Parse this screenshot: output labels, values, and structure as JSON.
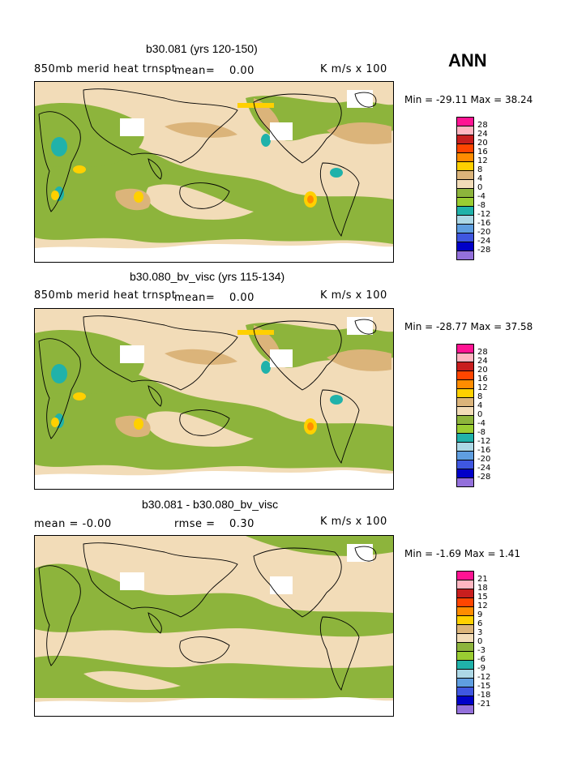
{
  "season": "ANN",
  "panels": [
    {
      "title": "b30.081 (yrs 120-150)",
      "left_label": "850mb merid heat trnspt",
      "mean_label": "mean=",
      "mean_value": "0.00",
      "units": "K m/s x 100",
      "minmax": "Min = -29.11 Max =  38.24",
      "levels": [
        "28",
        "24",
        "20",
        "16",
        "12",
        "8",
        "4",
        "0",
        "-4",
        "-8",
        "-12",
        "-16",
        "-20",
        "-24",
        "-28"
      ]
    },
    {
      "title": "b30.080_bv_visc (yrs 115-134)",
      "left_label": "850mb merid heat trnspt",
      "mean_label": "mean=",
      "mean_value": "0.00",
      "units": "K m/s x 100",
      "minmax": "Min = -28.77 Max =  37.58",
      "levels": [
        "28",
        "24",
        "20",
        "16",
        "12",
        "8",
        "4",
        "0",
        "-4",
        "-8",
        "-12",
        "-16",
        "-20",
        "-24",
        "-28"
      ]
    },
    {
      "title": "b30.081 - b30.080_bv_visc",
      "left_label": "mean =  -0.00",
      "rmse_label": "rmse =",
      "rmse_value": "0.30",
      "units": "K m/s x 100",
      "minmax": "Min =  -1.69 Max =    1.41",
      "levels": [
        "21",
        "18",
        "15",
        "12",
        "9",
        "6",
        "3",
        "0",
        "-3",
        "-6",
        "-9",
        "-12",
        "-15",
        "-18",
        "-21"
      ]
    }
  ],
  "colorbar_colors": [
    "#ff1493",
    "#ffb6c1",
    "#c81e1e",
    "#ff4500",
    "#ff8c00",
    "#ffd000",
    "#dbb47a",
    "#f2dcb8",
    "#8db43c",
    "#9acd32",
    "#20b2aa",
    "#add8e6",
    "#5f9ee0",
    "#3f57e0",
    "#0000c8",
    "#9370db"
  ]
}
